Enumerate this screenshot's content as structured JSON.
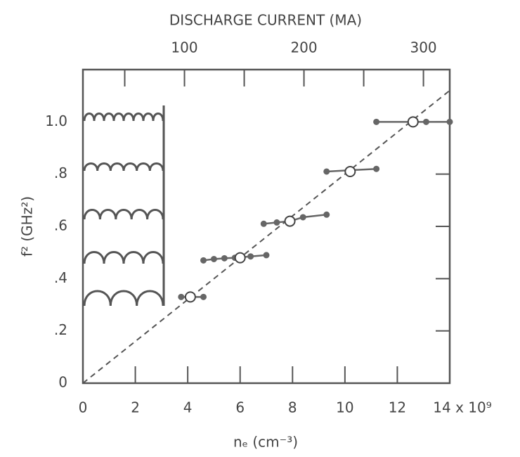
{
  "chart_data": {
    "type": "line",
    "x2label": "DISCHARGE CURRENT (MA)",
    "xlabel": "nₑ (cm⁻³)",
    "ylabel": "f² (GHz²)",
    "xlim": [
      0,
      14
    ],
    "ylim": [
      0,
      1.2
    ],
    "xticks": [
      0,
      2,
      4,
      6,
      8,
      10,
      12,
      {
        "value": 14,
        "label": "14 x 10⁹"
      }
    ],
    "yticks": [
      0,
      {
        "value": 0.2,
        "label": ".2"
      },
      {
        "value": 0.4,
        "label": ".4"
      },
      {
        "value": 0.6,
        "label": ".6"
      },
      {
        "value": 0.8,
        "label": ".8"
      },
      {
        "value": 1.0,
        "label": "1.0"
      }
    ],
    "x2lim": [
      15,
      322
    ],
    "x2ticks": [
      100,
      200,
      300
    ],
    "x2minor": [
      50,
      150,
      250
    ],
    "series": [
      {
        "style": "dashed",
        "color": "#555",
        "x": [
          0,
          14
        ],
        "values": [
          0,
          1.12
        ]
      },
      {
        "style": "filled",
        "color": "#666",
        "x": [
          3.75,
          4.1,
          4.6,
          null,
          4.6,
          5.0,
          5.4,
          5.8,
          6.4,
          7.0,
          null,
          6.9,
          7.4,
          7.9,
          8.4,
          9.3,
          null,
          9.3,
          10.2,
          11.2,
          null,
          11.2,
          12.6,
          13.1,
          14.0
        ],
        "values": [
          0.33,
          0.33,
          0.33,
          null,
          0.47,
          0.475,
          0.478,
          0.48,
          0.485,
          0.49,
          null,
          0.61,
          0.615,
          0.62,
          0.635,
          0.645,
          null,
          0.81,
          0.815,
          0.82,
          null,
          1.0,
          1.0,
          1.0,
          1.0
        ]
      },
      {
        "style": "open",
        "color": "#444",
        "x": [
          4.1,
          6.0,
          7.9,
          10.2,
          12.6
        ],
        "values": [
          0.33,
          0.48,
          0.62,
          0.81,
          1.0
        ]
      }
    ]
  }
}
